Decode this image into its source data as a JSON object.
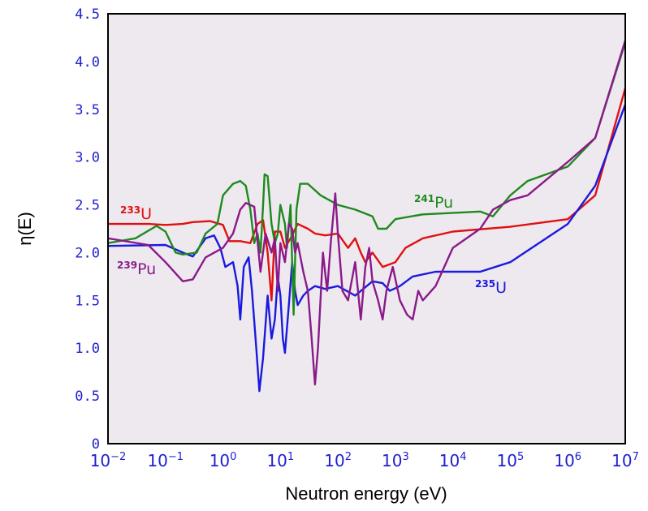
{
  "chart_data": {
    "type": "line",
    "xlabel": "Neutron energy (eV)",
    "ylabel": "η(E)",
    "x_scale": "log",
    "xlim": [
      0.01,
      10000000
    ],
    "ylim": [
      0,
      4.5
    ],
    "y_ticks": [
      "0",
      "0.5",
      "1.0",
      "1.5",
      "2.0",
      "2.5",
      "3.0",
      "3.5",
      "4.0",
      "4.5"
    ],
    "x_ticks": [
      {
        "base": "10",
        "exp": "−2",
        "value": 0.01
      },
      {
        "base": "10",
        "exp": "−1",
        "value": 0.1
      },
      {
        "base": "10",
        "exp": "0",
        "value": 1
      },
      {
        "base": "10",
        "exp": "1",
        "value": 10
      },
      {
        "base": "10",
        "exp": "2",
        "value": 100
      },
      {
        "base": "10",
        "exp": "3",
        "value": 1000
      },
      {
        "base": "10",
        "exp": "4",
        "value": 10000
      },
      {
        "base": "10",
        "exp": "5",
        "value": 100000
      },
      {
        "base": "10",
        "exp": "6",
        "value": 1000000
      },
      {
        "base": "10",
        "exp": "7",
        "value": 10000000
      }
    ],
    "plot_background": "#eee9ef",
    "grid": false,
    "series": [
      {
        "color": "#e01010",
        "label": {
          "sup": "233",
          "text": "U"
        },
        "points": [
          [
            0.01,
            2.3
          ],
          [
            0.05,
            2.3
          ],
          [
            0.1,
            2.29
          ],
          [
            0.2,
            2.3
          ],
          [
            0.3,
            2.32
          ],
          [
            0.6,
            2.33
          ],
          [
            1,
            2.29
          ],
          [
            1.3,
            2.12
          ],
          [
            2,
            2.12
          ],
          [
            3,
            2.1
          ],
          [
            4,
            2.3
          ],
          [
            5,
            2.34
          ],
          [
            6,
            2.0
          ],
          [
            7,
            1.5
          ],
          [
            8,
            2.22
          ],
          [
            10,
            2.22
          ],
          [
            12,
            2.05
          ],
          [
            15,
            2.15
          ],
          [
            20,
            2.3
          ],
          [
            30,
            2.25
          ],
          [
            40,
            2.2
          ],
          [
            60,
            2.18
          ],
          [
            100,
            2.2
          ],
          [
            150,
            2.05
          ],
          [
            200,
            2.15
          ],
          [
            250,
            2.0
          ],
          [
            300,
            1.9
          ],
          [
            400,
            2.0
          ],
          [
            600,
            1.85
          ],
          [
            1000,
            1.9
          ],
          [
            1500,
            2.05
          ],
          [
            3000,
            2.15
          ],
          [
            10000,
            2.22
          ],
          [
            100000,
            2.27
          ],
          [
            1000000,
            2.35
          ],
          [
            3000000,
            2.6
          ],
          [
            10000000,
            3.72
          ]
        ]
      },
      {
        "color": "#1a1ae0",
        "label": {
          "sup": "235",
          "text": "U"
        },
        "points": [
          [
            0.01,
            2.07
          ],
          [
            0.1,
            2.08
          ],
          [
            0.2,
            2.0
          ],
          [
            0.3,
            1.96
          ],
          [
            0.5,
            2.15
          ],
          [
            0.7,
            2.18
          ],
          [
            0.9,
            2.05
          ],
          [
            1.1,
            1.85
          ],
          [
            1.5,
            1.9
          ],
          [
            1.8,
            1.65
          ],
          [
            2,
            1.3
          ],
          [
            2.3,
            1.85
          ],
          [
            2.8,
            1.95
          ],
          [
            3.2,
            1.6
          ],
          [
            3.8,
            1.0
          ],
          [
            4.3,
            0.55
          ],
          [
            5,
            0.9
          ],
          [
            6,
            1.55
          ],
          [
            7,
            1.1
          ],
          [
            8,
            1.3
          ],
          [
            9,
            1.75
          ],
          [
            10,
            1.55
          ],
          [
            11,
            1.1
          ],
          [
            12,
            0.95
          ],
          [
            14,
            1.45
          ],
          [
            16,
            1.9
          ],
          [
            18,
            1.6
          ],
          [
            20,
            1.45
          ],
          [
            25,
            1.55
          ],
          [
            30,
            1.6
          ],
          [
            40,
            1.65
          ],
          [
            60,
            1.62
          ],
          [
            100,
            1.65
          ],
          [
            200,
            1.55
          ],
          [
            400,
            1.7
          ],
          [
            600,
            1.68
          ],
          [
            800,
            1.6
          ],
          [
            1200,
            1.65
          ],
          [
            2000,
            1.75
          ],
          [
            5000,
            1.8
          ],
          [
            30000,
            1.8
          ],
          [
            100000,
            1.9
          ],
          [
            1000000,
            2.3
          ],
          [
            3000000,
            2.7
          ],
          [
            10000000,
            3.55
          ]
        ]
      },
      {
        "color": "#1e8a1e",
        "label": {
          "sup": "241",
          "text": "Pu"
        },
        "points": [
          [
            0.01,
            2.1
          ],
          [
            0.03,
            2.15
          ],
          [
            0.07,
            2.28
          ],
          [
            0.1,
            2.22
          ],
          [
            0.15,
            2.0
          ],
          [
            0.2,
            1.98
          ],
          [
            0.35,
            2.0
          ],
          [
            0.5,
            2.2
          ],
          [
            0.8,
            2.3
          ],
          [
            1,
            2.6
          ],
          [
            1.5,
            2.72
          ],
          [
            2,
            2.75
          ],
          [
            2.5,
            2.7
          ],
          [
            3,
            2.45
          ],
          [
            3.5,
            2.1
          ],
          [
            4,
            2.2
          ],
          [
            4.5,
            2.0
          ],
          [
            5,
            2.5
          ],
          [
            5.3,
            2.82
          ],
          [
            6,
            2.8
          ],
          [
            7,
            2.3
          ],
          [
            8,
            2.1
          ],
          [
            9,
            2.2
          ],
          [
            10,
            2.5
          ],
          [
            12,
            2.3
          ],
          [
            13,
            2.05
          ],
          [
            15,
            2.5
          ],
          [
            17,
            1.35
          ],
          [
            19,
            2.45
          ],
          [
            22,
            2.72
          ],
          [
            30,
            2.72
          ],
          [
            50,
            2.6
          ],
          [
            100,
            2.5
          ],
          [
            200,
            2.45
          ],
          [
            400,
            2.38
          ],
          [
            500,
            2.25
          ],
          [
            700,
            2.25
          ],
          [
            1000,
            2.35
          ],
          [
            3000,
            2.4
          ],
          [
            30000,
            2.43
          ],
          [
            50000,
            2.38
          ],
          [
            100000,
            2.6
          ],
          [
            200000,
            2.75
          ],
          [
            1000000,
            2.9
          ],
          [
            3000000,
            3.2
          ],
          [
            10000000,
            4.2
          ]
        ]
      },
      {
        "color": "#8a1a8a",
        "label": {
          "sup": "239",
          "text": "Pu"
        },
        "points": [
          [
            0.01,
            2.15
          ],
          [
            0.05,
            2.08
          ],
          [
            0.1,
            1.9
          ],
          [
            0.2,
            1.7
          ],
          [
            0.3,
            1.72
          ],
          [
            0.5,
            1.95
          ],
          [
            1,
            2.05
          ],
          [
            1.5,
            2.2
          ],
          [
            2,
            2.45
          ],
          [
            2.5,
            2.52
          ],
          [
            3.5,
            2.48
          ],
          [
            4.5,
            1.8
          ],
          [
            5.5,
            2.2
          ],
          [
            7,
            2.0
          ],
          [
            8,
            2.15
          ],
          [
            9,
            1.6
          ],
          [
            10,
            2.1
          ],
          [
            12,
            1.9
          ],
          [
            14,
            2.3
          ],
          [
            16,
            2.25
          ],
          [
            18,
            2.0
          ],
          [
            20,
            2.1
          ],
          [
            25,
            1.8
          ],
          [
            30,
            1.6
          ],
          [
            35,
            1.1
          ],
          [
            40,
            0.62
          ],
          [
            45,
            1.0
          ],
          [
            55,
            2.0
          ],
          [
            65,
            1.6
          ],
          [
            75,
            2.1
          ],
          [
            90,
            2.62
          ],
          [
            100,
            2.2
          ],
          [
            120,
            1.6
          ],
          [
            150,
            1.5
          ],
          [
            200,
            1.9
          ],
          [
            250,
            1.3
          ],
          [
            300,
            1.85
          ],
          [
            350,
            2.05
          ],
          [
            400,
            1.7
          ],
          [
            500,
            1.5
          ],
          [
            600,
            1.3
          ],
          [
            700,
            1.6
          ],
          [
            900,
            1.85
          ],
          [
            1200,
            1.5
          ],
          [
            1600,
            1.35
          ],
          [
            2000,
            1.3
          ],
          [
            2500,
            1.6
          ],
          [
            3000,
            1.5
          ],
          [
            5000,
            1.65
          ],
          [
            10000,
            2.05
          ],
          [
            30000,
            2.25
          ],
          [
            50000,
            2.45
          ],
          [
            100000,
            2.55
          ],
          [
            200000,
            2.6
          ],
          [
            1000000,
            2.95
          ],
          [
            3000000,
            3.2
          ],
          [
            10000000,
            4.22
          ]
        ]
      }
    ]
  }
}
